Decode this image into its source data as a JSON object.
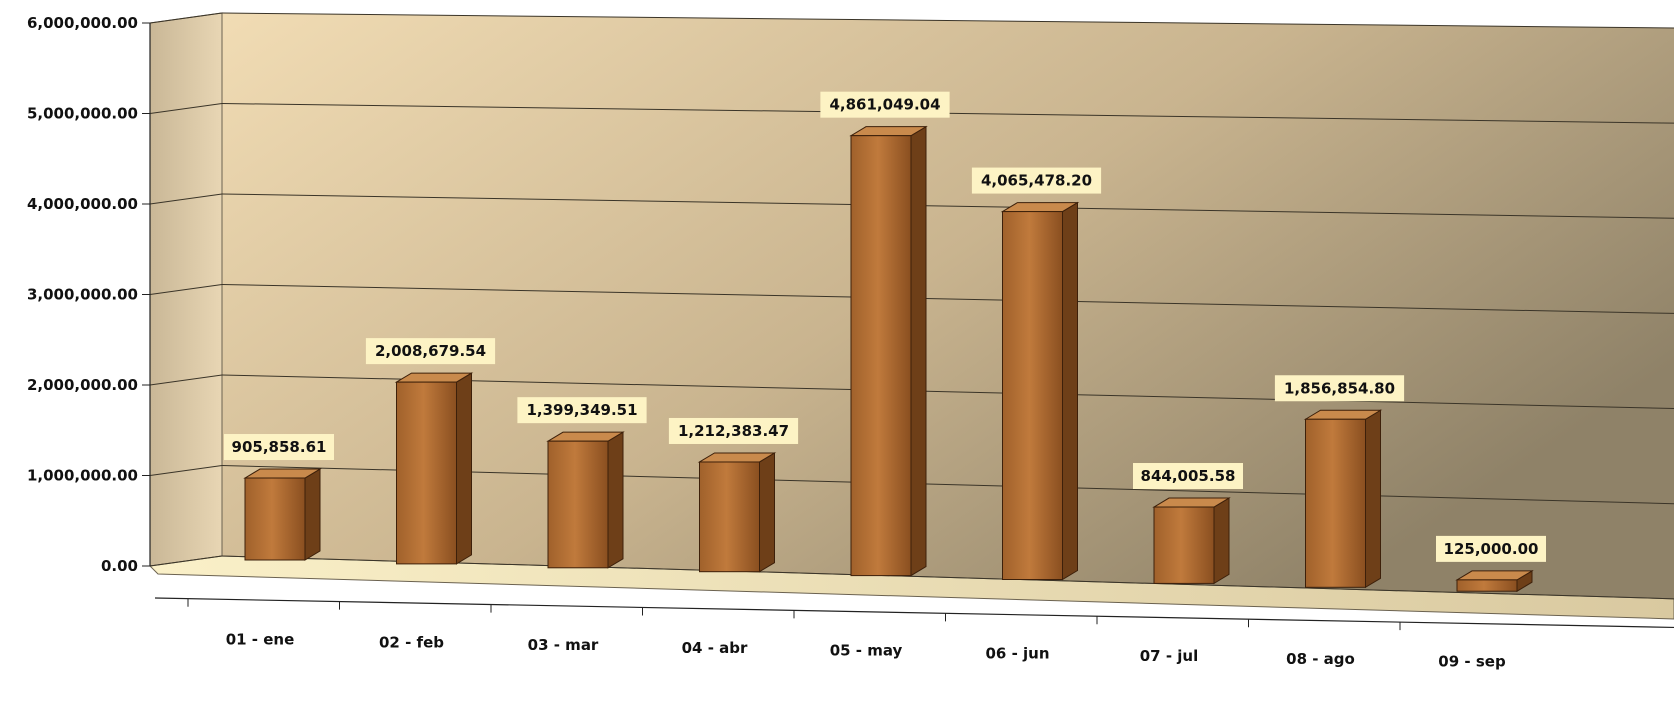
{
  "chart_data": {
    "type": "bar",
    "style": "3d-column",
    "title": "",
    "xlabel": "",
    "ylabel": "",
    "categories": [
      "01 - ene",
      "02 - feb",
      "03 - mar",
      "04 - abr",
      "05 - may",
      "06 - jun",
      "07 - jul",
      "08 - ago",
      "09 - sep"
    ],
    "values": [
      905858.61,
      2008679.54,
      1399349.51,
      1212383.47,
      4861049.04,
      4065478.2,
      844005.58,
      1856854.8,
      125000.0
    ],
    "value_labels": [
      "905,858.61",
      "2,008,679.54",
      "1,399,349.51",
      "1,212,383.47",
      "4,861,049.04",
      "4,065,478.20",
      "844,005.58",
      "1,856,854.80",
      "125,000.00"
    ],
    "yticks": [
      0,
      1000000,
      2000000,
      3000000,
      4000000,
      5000000,
      6000000
    ],
    "ytick_labels": [
      "0.00",
      "1,000,000.00",
      "2,000,000.00",
      "3,000,000.00",
      "4,000,000.00",
      "5,000,000.00",
      "6,000,000.00"
    ],
    "ylim": [
      0,
      6000000
    ],
    "grid": true,
    "legend": "none",
    "colors": {
      "bar": "#a0612b",
      "bar_light": "#c07a3c",
      "bar_dark": "#6e3f18",
      "wall_light": "#f1dcb4",
      "wall_dark": "#8f8268",
      "label_bg": "#fdf3c4"
    }
  }
}
